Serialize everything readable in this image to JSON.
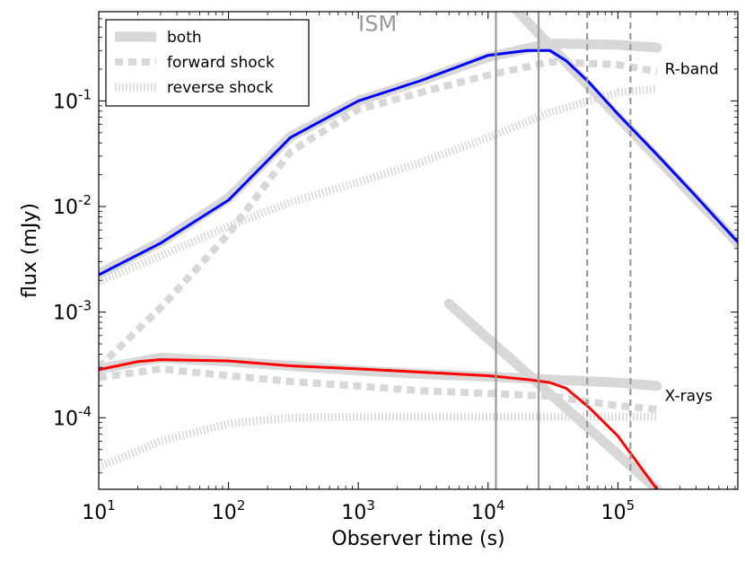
{
  "chart_data": {
    "type": "line",
    "xlabel": "Observer time (s)",
    "ylabel": "flux (mJy)",
    "xscale": "log",
    "yscale": "log",
    "xlim": [
      10,
      840000
    ],
    "ylim": [
      2.1e-05,
      0.7
    ],
    "x_ticks": [
      {
        "base": "10",
        "exp": "1"
      },
      {
        "base": "10",
        "exp": "2"
      },
      {
        "base": "10",
        "exp": "3"
      },
      {
        "base": "10",
        "exp": "4"
      },
      {
        "base": "10",
        "exp": "5"
      }
    ],
    "y_ticks": [
      {
        "base": "10",
        "exp": "-4"
      },
      {
        "base": "10",
        "exp": "-3"
      },
      {
        "base": "10",
        "exp": "-2"
      },
      {
        "base": "10",
        "exp": "-1"
      }
    ],
    "legend": {
      "placement": "upper-left",
      "entries": [
        {
          "label": "both",
          "style": "solid-thick",
          "color": "#d8d8d8"
        },
        {
          "label": "forward shock",
          "style": "dashed-thick",
          "color": "#d8d8d8"
        },
        {
          "label": "reverse shock",
          "style": "dotted",
          "color": "#d8d8d8"
        }
      ]
    },
    "annotations": [
      {
        "text": "ISM",
        "x": 1000,
        "y": 0.46,
        "role": "ism"
      },
      {
        "text": "R-band",
        "x": 230000,
        "y": 0.18,
        "role": "band"
      },
      {
        "text": "X-rays",
        "x": 230000,
        "y": 0.000145,
        "role": "band"
      }
    ],
    "vertical_lines": [
      {
        "x": 11500,
        "style": "solid",
        "color": "#999999"
      },
      {
        "x": 24500,
        "style": "solid",
        "color": "#999999"
      },
      {
        "x": 58000,
        "style": "dashed",
        "color": "#999999"
      },
      {
        "x": 125000,
        "style": "dashed",
        "color": "#999999"
      }
    ],
    "series": [
      {
        "group": "R-band",
        "component": "forward shock",
        "style": "dashed-thick",
        "color": "#d8d8d8",
        "x": [
          10,
          30,
          100,
          300,
          1000,
          3000,
          10000,
          30000,
          100000,
          200000
        ],
        "y": [
          0.0003,
          0.0011,
          0.0055,
          0.033,
          0.083,
          0.12,
          0.175,
          0.235,
          0.22,
          0.19
        ]
      },
      {
        "group": "R-band",
        "component": "reverse shock",
        "style": "dotted",
        "color": "#d8d8d8",
        "x": [
          10,
          30,
          100,
          300,
          1000,
          3000,
          10000,
          30000,
          100000,
          200000
        ],
        "y": [
          0.00195,
          0.0034,
          0.0065,
          0.011,
          0.017,
          0.026,
          0.045,
          0.078,
          0.12,
          0.13
        ]
      },
      {
        "group": "R-band",
        "component": "both",
        "style": "solid-thick",
        "color": "#d8d8d8",
        "x": [
          10,
          30,
          100,
          300,
          1000,
          3000,
          10000,
          30000,
          100000,
          200000
        ],
        "y": [
          0.0023,
          0.0046,
          0.012,
          0.046,
          0.1,
          0.155,
          0.26,
          0.35,
          0.34,
          0.32
        ]
      },
      {
        "group": "R-band",
        "component": "both asymptote",
        "style": "solid-thick",
        "color": "#d8d8d8",
        "x": [
          14000,
          840000
        ],
        "y": [
          0.9,
          0.0045
        ]
      },
      {
        "group": "R-band",
        "component": "observed",
        "style": "solid",
        "color": "#0000ff",
        "x": [
          10,
          30,
          100,
          300,
          1000,
          3000,
          10000,
          20000,
          30000,
          40000,
          60000,
          100000,
          200000,
          400000,
          840000
        ],
        "y": [
          0.00225,
          0.0045,
          0.0115,
          0.045,
          0.1,
          0.155,
          0.27,
          0.3,
          0.3,
          0.24,
          0.15,
          0.075,
          0.031,
          0.0125,
          0.0046
        ]
      },
      {
        "group": "X-rays",
        "component": "forward shock",
        "style": "dashed-thick",
        "color": "#d8d8d8",
        "x": [
          10,
          30,
          100,
          300,
          1000,
          3000,
          10000,
          30000,
          100000,
          200000
        ],
        "y": [
          0.00024,
          0.00029,
          0.00025,
          0.00022,
          0.0002,
          0.00018,
          0.00017,
          0.00016,
          0.00013,
          0.00012
        ]
      },
      {
        "group": "X-rays",
        "component": "reverse shock",
        "style": "dotted",
        "color": "#d8d8d8",
        "x": [
          10,
          30,
          100,
          300,
          1000,
          3000,
          10000,
          30000,
          100000,
          200000
        ],
        "y": [
          3.4e-05,
          6e-05,
          8.8e-05,
          0.0001,
          0.000102,
          0.000102,
          0.000102,
          0.000102,
          0.000102,
          0.000102
        ]
      },
      {
        "group": "X-rays",
        "component": "both",
        "style": "solid-thick",
        "color": "#d8d8d8",
        "x": [
          10,
          30,
          100,
          300,
          1000,
          3000,
          10000,
          30000,
          100000,
          200000
        ],
        "y": [
          0.00029,
          0.00037,
          0.00034,
          0.00031,
          0.00028,
          0.00026,
          0.000245,
          0.00023,
          0.000215,
          0.0002
        ]
      },
      {
        "group": "X-rays",
        "component": "both asymptote",
        "style": "solid-thick",
        "color": "#d8d8d8",
        "x": [
          5000,
          200000
        ],
        "y": [
          0.0012,
          2.1e-05
        ]
      },
      {
        "group": "X-rays",
        "component": "observed",
        "style": "solid",
        "color": "#ff0000",
        "x": [
          10,
          20,
          30,
          100,
          300,
          1000,
          3000,
          10000,
          20000,
          30000,
          40000,
          60000,
          100000,
          200000
        ],
        "y": [
          0.000285,
          0.00034,
          0.000355,
          0.000345,
          0.00031,
          0.00029,
          0.00027,
          0.00025,
          0.00023,
          0.000215,
          0.00019,
          0.000125,
          6.7e-05,
          2.1e-05
        ]
      }
    ]
  }
}
